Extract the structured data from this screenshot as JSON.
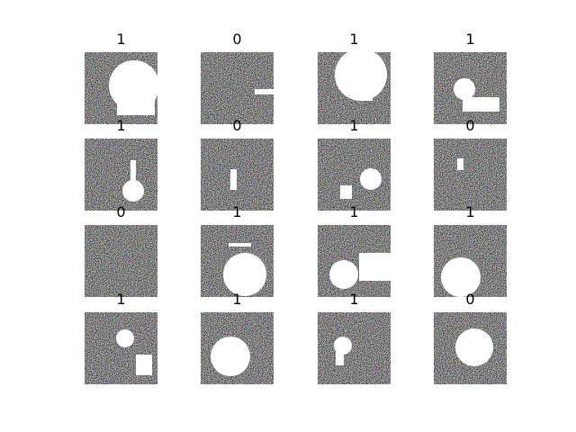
{
  "titles": [
    "1",
    "0",
    "1",
    "1",
    "1",
    "0",
    "1",
    "0",
    "0",
    "1",
    "1",
    "1",
    "1",
    "1",
    "1",
    "0"
  ]
}
